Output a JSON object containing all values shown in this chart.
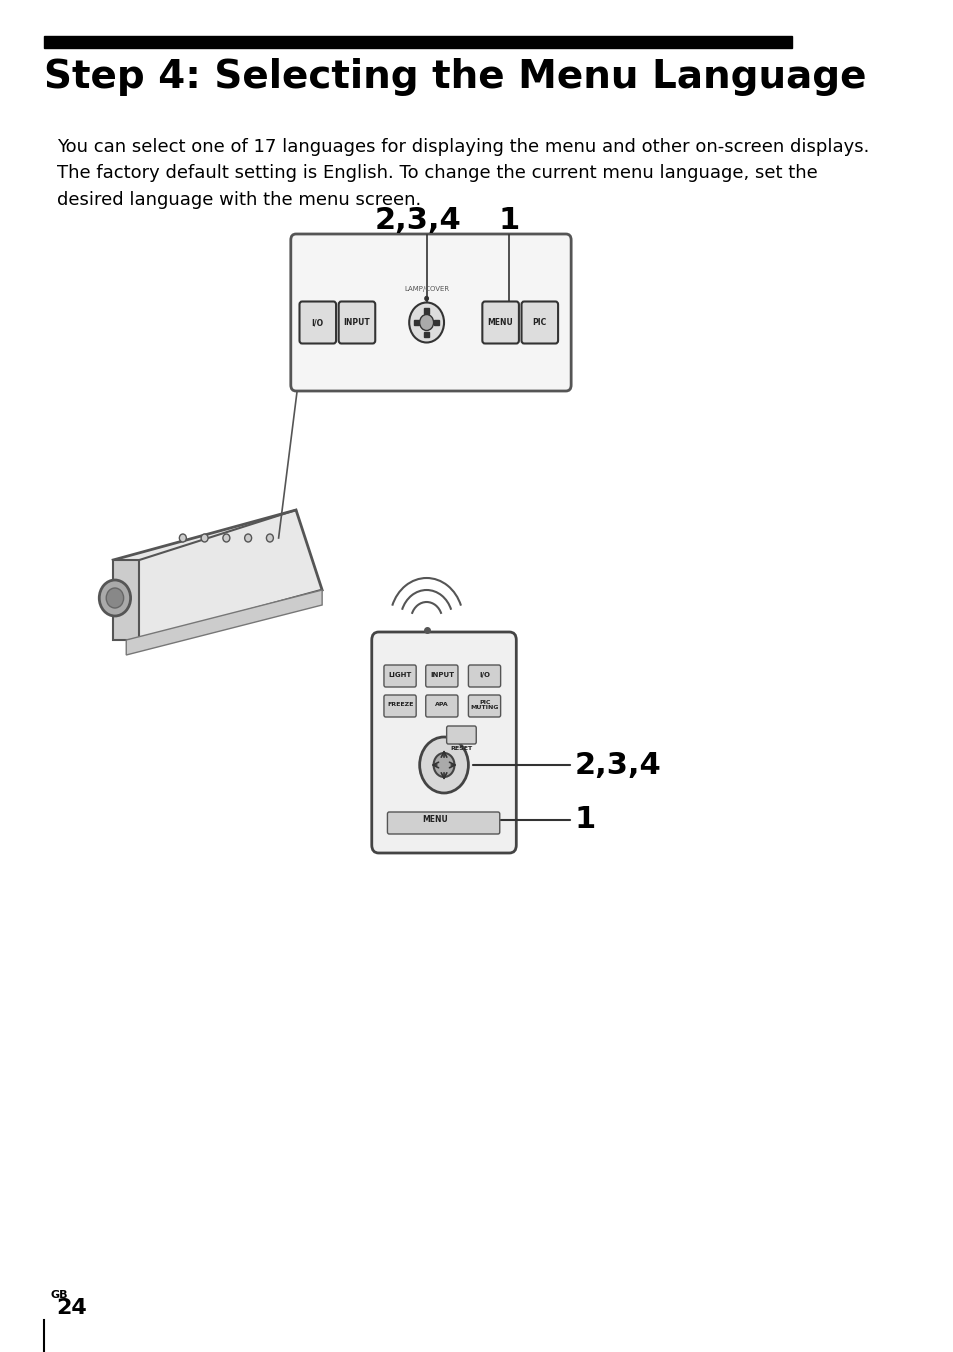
{
  "title": "Step 4: Selecting the Menu Language",
  "title_bar_color": "#000000",
  "title_fontsize": 28,
  "title_fontstyle": "bold",
  "body_text": "You can select one of 17 languages for displaying the menu and other on-screen displays.\nThe factory default setting is English. To change the current menu language, set the\ndesired language with the menu screen.",
  "body_fontsize": 13,
  "page_label": "GB",
  "page_number": "24",
  "page_fontsize_gb": 8,
  "page_fontsize_num": 16,
  "bg_color": "#ffffff",
  "text_color": "#000000",
  "label_234_top": "2,3,4",
  "label_1_top": "1",
  "label_234_bot": "2,3,4",
  "label_1_bot": "1",
  "annotation_fontsize": 22
}
